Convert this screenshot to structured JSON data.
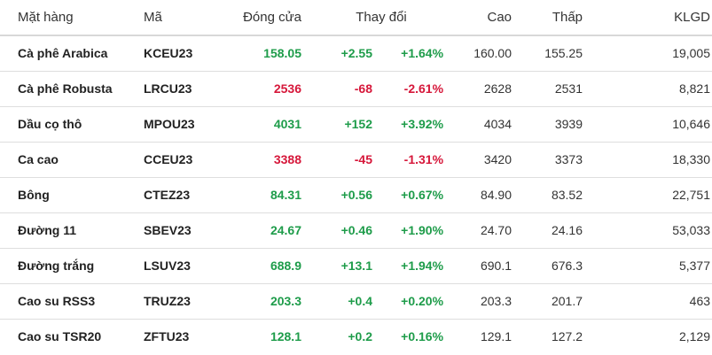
{
  "colors": {
    "up": "#1e9c4a",
    "down": "#d6173a",
    "divider": "#dedede"
  },
  "headers": {
    "name": "Mặt hàng",
    "symbol": "Mã",
    "close": "Đóng cửa",
    "change": "Thay đổi",
    "high": "Cao",
    "low": "Thấp",
    "volume": "KLGD"
  },
  "rows": [
    {
      "name": "Cà phê Arabica",
      "symbol": "KCEU23",
      "close": "158.05",
      "change": "+2.55",
      "pct": "+1.64%",
      "high": "160.00",
      "low": "155.25",
      "volume": "19,005",
      "trend": "up"
    },
    {
      "name": "Cà phê Robusta",
      "symbol": "LRCU23",
      "close": "2536",
      "change": "-68",
      "pct": "-2.61%",
      "high": "2628",
      "low": "2531",
      "volume": "8,821",
      "trend": "down"
    },
    {
      "name": "Dầu cọ thô",
      "symbol": "MPOU23",
      "close": "4031",
      "change": "+152",
      "pct": "+3.92%",
      "high": "4034",
      "low": "3939",
      "volume": "10,646",
      "trend": "up"
    },
    {
      "name": "Ca cao",
      "symbol": "CCEU23",
      "close": "3388",
      "change": "-45",
      "pct": "-1.31%",
      "high": "3420",
      "low": "3373",
      "volume": "18,330",
      "trend": "down"
    },
    {
      "name": "Bông",
      "symbol": "CTEZ23",
      "close": "84.31",
      "change": "+0.56",
      "pct": "+0.67%",
      "high": "84.90",
      "low": "83.52",
      "volume": "22,751",
      "trend": "up"
    },
    {
      "name": "Đường 11",
      "symbol": "SBEV23",
      "close": "24.67",
      "change": "+0.46",
      "pct": "+1.90%",
      "high": "24.70",
      "low": "24.16",
      "volume": "53,033",
      "trend": "up"
    },
    {
      "name": "Đường trắng",
      "symbol": "LSUV23",
      "close": "688.9",
      "change": "+13.1",
      "pct": "+1.94%",
      "high": "690.1",
      "low": "676.3",
      "volume": "5,377",
      "trend": "up"
    },
    {
      "name": "Cao su RSS3",
      "symbol": "TRUZ23",
      "close": "203.3",
      "change": "+0.4",
      "pct": "+0.20%",
      "high": "203.3",
      "low": "201.7",
      "volume": "463",
      "trend": "up"
    },
    {
      "name": "Cao su TSR20",
      "symbol": "ZFTU23",
      "close": "128.1",
      "change": "+0.2",
      "pct": "+0.16%",
      "high": "129.1",
      "low": "127.2",
      "volume": "2,129",
      "trend": "up"
    }
  ]
}
